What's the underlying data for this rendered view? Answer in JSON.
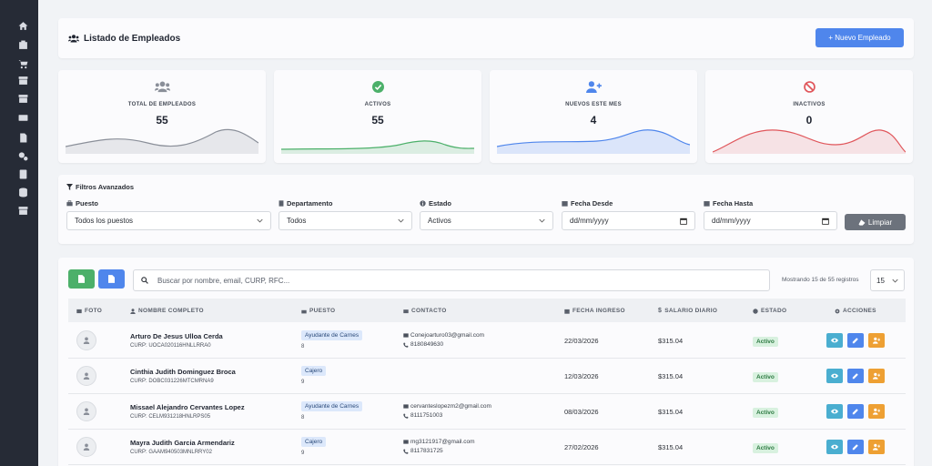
{
  "sidebar": {
    "icons": [
      "home-icon",
      "building-icon",
      "cart-icon",
      "archive-icon",
      "box-icon",
      "cash-icon",
      "document-icon",
      "gears-icon",
      "calculator-icon",
      "database-icon",
      "box-icon-2"
    ]
  },
  "header": {
    "title": "Listado de Empleados",
    "new_button": "+ Nuevo Empleado"
  },
  "stats": [
    {
      "label": "TOTAL DE EMPLEADOS",
      "value": "55",
      "icon": "users-icon",
      "color": "#8a8f99"
    },
    {
      "label": "ACTIVOS",
      "value": "55",
      "icon": "check-circle-icon",
      "color": "#4cb06a"
    },
    {
      "label": "NUEVOS ESTE MES",
      "value": "4",
      "icon": "user-plus-icon",
      "color": "#4f86ec"
    },
    {
      "label": "INACTIVOS",
      "value": "0",
      "icon": "ban-icon",
      "color": "#e0565b"
    }
  ],
  "filters": {
    "title": "Filtros Avanzados",
    "puesto_label": "Puesto",
    "puesto_value": "Todos los puestos",
    "departamento_label": "Departamento",
    "departamento_value": "Todos",
    "estado_label": "Estado",
    "estado_value": "Activos",
    "desde_label": "Fecha Desde",
    "desde_value": "dd/mm/yyyy",
    "hasta_label": "Fecha Hasta",
    "hasta_value": "dd/mm/yyyy",
    "clear_button": "Limpiar"
  },
  "table": {
    "search_placeholder": "Buscar por nombre, email, CURP, RFC...",
    "showing": "Mostrando 15 de 55 registros",
    "page_size": "15",
    "headers": {
      "foto": "FOTO",
      "nombre": "NOMBRE COMPLETO",
      "puesto": "PUESTO",
      "contacto": "CONTACTO",
      "fecha": "FECHA INGRESO",
      "salario": "SALARIO DIARIO",
      "estado": "ESTADO",
      "acciones": "ACCIONES"
    },
    "rows": [
      {
        "name": "Arturo De Jesus Ulloa Cerda",
        "curp": "CURP: UOCA020116HNLLRRA0",
        "puesto": "Ayudante de Carnes",
        "num": "8",
        "email": "Conejoarturo03@gmail.com",
        "phone": "8180849630",
        "fecha": "22/03/2026",
        "salario": "$315.04",
        "estado": "Activo"
      },
      {
        "name": "Cinthia Judith Dominguez Broca",
        "curp": "CURP: DOBC031226MTCMRNA9",
        "puesto": "Cajero",
        "num": "9",
        "email": "",
        "phone": "",
        "fecha": "12/03/2026",
        "salario": "$315.04",
        "estado": "Activo"
      },
      {
        "name": "Missael Alejandro Cervantes Lopez",
        "curp": "CURP: CELM931218HNLRPS05",
        "puesto": "Ayudante de Carnes",
        "num": "8",
        "email": "cervanteslopezm2@gmail.com",
        "phone": "8111751003",
        "fecha": "08/03/2026",
        "salario": "$315.04",
        "estado": "Activo"
      },
      {
        "name": "Mayra Judith Garcia Armendariz",
        "curp": "CURP: GAAM940503MNLRRY02",
        "puesto": "Cajero",
        "num": "9",
        "email": "mg3121917@gmail.com",
        "phone": "8117831725",
        "fecha": "27/02/2026",
        "salario": "$315.04",
        "estado": "Activo"
      }
    ]
  }
}
